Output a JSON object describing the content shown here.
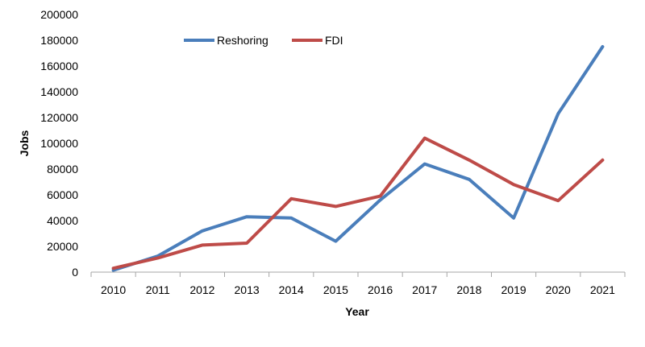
{
  "chart_data": {
    "type": "line",
    "title": "",
    "xlabel": "Year",
    "ylabel": "Jobs",
    "categories": [
      "2010",
      "2011",
      "2012",
      "2013",
      "2014",
      "2015",
      "2016",
      "2017",
      "2018",
      "2019",
      "2020",
      "2021"
    ],
    "ylim": [
      0,
      200000
    ],
    "yticks": [
      0,
      20000,
      40000,
      60000,
      80000,
      100000,
      120000,
      140000,
      160000,
      180000,
      200000
    ],
    "grid": false,
    "legend_position": "top-center",
    "series": [
      {
        "name": "Reshoring",
        "color": "#4a7ebb",
        "values": [
          1500,
          12500,
          32000,
          43000,
          42000,
          24000,
          56000,
          84000,
          72000,
          42000,
          123000,
          175000
        ]
      },
      {
        "name": "FDI",
        "color": "#be4b48",
        "values": [
          3000,
          11000,
          21000,
          22500,
          57000,
          51000,
          59000,
          104000,
          87000,
          68000,
          55500,
          87000
        ]
      }
    ]
  }
}
